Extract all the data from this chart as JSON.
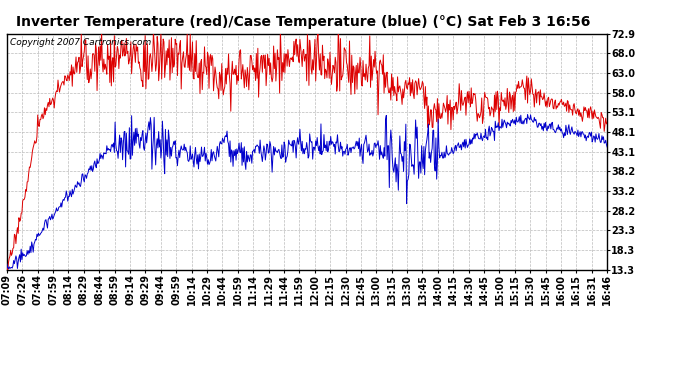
{
  "title": "Inverter Temperature (red)/Case Temperature (blue) (°C) Sat Feb 3 16:56",
  "copyright": "Copyright 2007 Cartronics.com",
  "y_ticks": [
    13.3,
    18.3,
    23.3,
    28.2,
    33.2,
    38.2,
    43.1,
    48.1,
    53.1,
    58.0,
    63.0,
    68.0,
    72.9
  ],
  "ylim": [
    13.3,
    72.9
  ],
  "x_labels": [
    "07:09",
    "07:26",
    "07:44",
    "07:59",
    "08:14",
    "08:29",
    "08:44",
    "08:59",
    "09:14",
    "09:29",
    "09:44",
    "09:59",
    "10:14",
    "10:29",
    "10:44",
    "10:59",
    "11:14",
    "11:29",
    "11:44",
    "11:59",
    "12:00",
    "12:15",
    "12:30",
    "12:45",
    "13:00",
    "13:15",
    "13:30",
    "13:45",
    "14:00",
    "14:15",
    "14:30",
    "14:45",
    "15:00",
    "15:15",
    "15:30",
    "15:45",
    "16:00",
    "16:15",
    "16:31",
    "16:46"
  ],
  "background_color": "#ffffff",
  "plot_bg_color": "#ffffff",
  "grid_color": "#bbbbbb",
  "red_color": "#dd0000",
  "blue_color": "#0000cc",
  "title_fontsize": 10,
  "tick_fontsize": 7,
  "copyright_fontsize": 6.5
}
